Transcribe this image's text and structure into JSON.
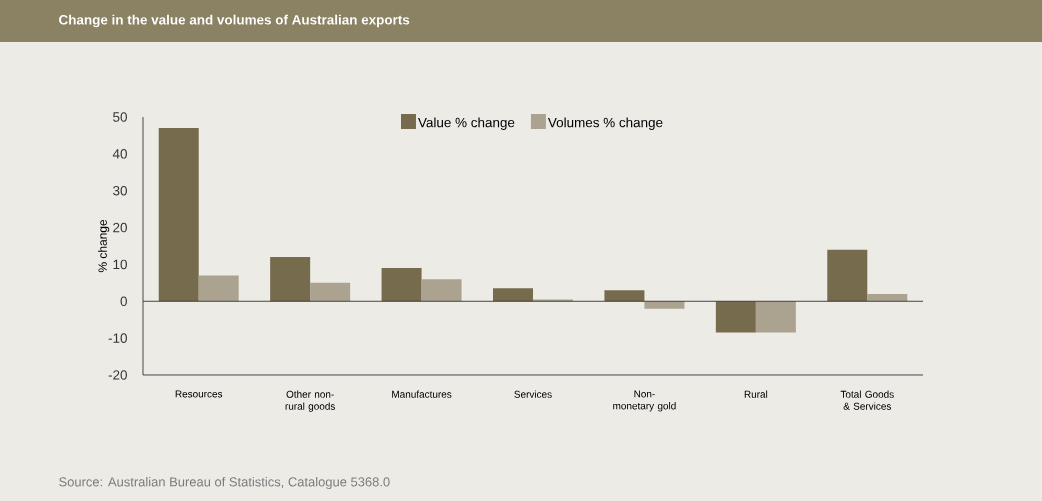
{
  "chart_data": {
    "type": "bar",
    "title": "Change in the value and volumes of Australian exports",
    "ylabel": "% change",
    "categories": [
      "Resources",
      "Other non-rural goods",
      "Manufactures",
      "Services",
      "Non-monetary gold",
      "Rural",
      "Total Goods & Services"
    ],
    "series": [
      {
        "name": "Value % change",
        "color": "#776b4e",
        "values": [
          47,
          12,
          9,
          3.5,
          3,
          -8.5,
          14
        ]
      },
      {
        "name": "Volumes % change",
        "color": "#aba390",
        "values": [
          7,
          5,
          6,
          0.5,
          -2,
          -8.5,
          2
        ]
      }
    ],
    "ref_lines": [
      {
        "axis": "y",
        "value": 0,
        "color": "#333333"
      }
    ],
    "ylim": [
      -20,
      50
    ],
    "yticks": [
      -20,
      -10,
      0,
      10,
      20,
      30,
      40,
      50
    ],
    "legend": "top",
    "grid": false,
    "annotations": [
      "Source: Australian Bureau of Statistics, Catalogue 5368.0"
    ]
  }
}
